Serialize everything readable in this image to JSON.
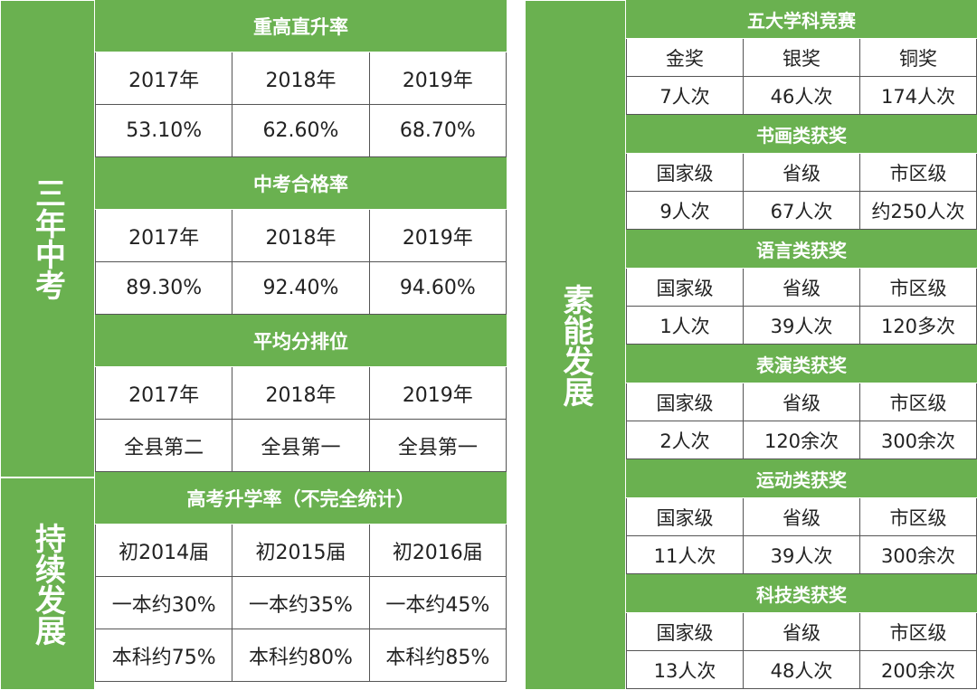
{
  "left": {
    "group1_label": "三年中考",
    "group2_label": "持续发展",
    "sections": [
      {
        "title": "重高直升率",
        "rows": [
          [
            "2017年",
            "2018年",
            "2019年"
          ],
          [
            "53.10%",
            "62.60%",
            "68.70%"
          ]
        ]
      },
      {
        "title": "中考合格率",
        "rows": [
          [
            "2017年",
            "2018年",
            "2019年"
          ],
          [
            "89.30%",
            "92.40%",
            "94.60%"
          ]
        ]
      },
      {
        "title": "平均分排位",
        "rows": [
          [
            "2017年",
            "2018年",
            "2019年"
          ],
          [
            "全县第二",
            "全县第一",
            "全县第一"
          ]
        ]
      },
      {
        "title": "高考升学率（不完全统计）",
        "rows": [
          [
            "初2014届",
            "初2015届",
            "初2016届"
          ],
          [
            "一本约30%",
            "一本约35%",
            "一本约45%"
          ],
          [
            "本科约75%",
            "本科约80%",
            "本科约85%"
          ]
        ]
      }
    ]
  },
  "right": {
    "label": "素能发展",
    "sections": [
      {
        "title": "五大学科竞赛",
        "rows": [
          [
            "金奖",
            "银奖",
            "铜奖"
          ],
          [
            "7人次",
            "46人次",
            "174人次"
          ]
        ]
      },
      {
        "title": "书画类获奖",
        "rows": [
          [
            "国家级",
            "省级",
            "市区级"
          ],
          [
            "9人次",
            "67人次",
            "约250人次"
          ]
        ]
      },
      {
        "title": "语言类获奖",
        "rows": [
          [
            "国家级",
            "省级",
            "市区级"
          ],
          [
            "1人次",
            "39人次",
            "120多次"
          ]
        ]
      },
      {
        "title": "表演类获奖",
        "rows": [
          [
            "国家级",
            "省级",
            "市区级"
          ],
          [
            "2人次",
            "120余次",
            "300余次"
          ]
        ]
      },
      {
        "title": "运动类获奖",
        "rows": [
          [
            "国家级",
            "省级",
            "市区级"
          ],
          [
            "11人次",
            "39人次",
            "300余次"
          ]
        ]
      },
      {
        "title": "科技类获奖",
        "rows": [
          [
            "国家级",
            "省级",
            "市区级"
          ],
          [
            "13人次",
            "48人次",
            "200余次"
          ]
        ]
      }
    ]
  },
  "colors": {
    "green": "#6ab150",
    "border": "#555555"
  }
}
